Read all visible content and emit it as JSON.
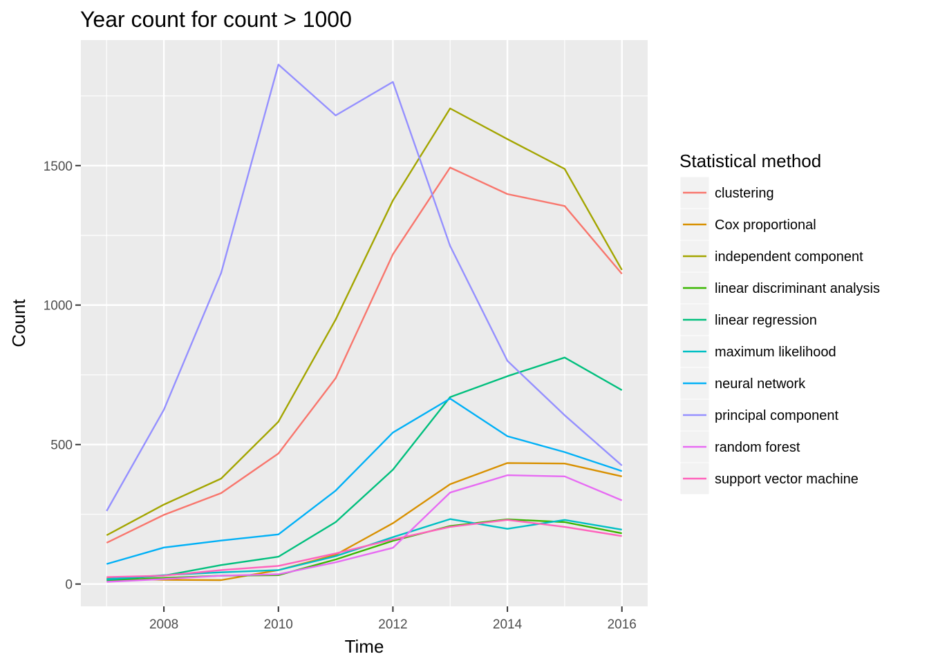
{
  "chart_data": {
    "type": "line",
    "title": "Year count for count > 1000",
    "xlabel": "Time",
    "ylabel": "Count",
    "x": [
      2007,
      2008,
      2009,
      2010,
      2011,
      2012,
      2013,
      2014,
      2015,
      2016
    ],
    "xticks": [
      2008,
      2010,
      2012,
      2014,
      2016
    ],
    "yticks": [
      0,
      500,
      1000,
      1500
    ],
    "xlim": [
      2006.55,
      2016.45
    ],
    "ylim": [
      -80,
      1950
    ],
    "grid": true,
    "legend_position": "right",
    "legend_title": "Statistical method",
    "series": [
      {
        "name": "clustering",
        "color": "#F8766D",
        "values": [
          148,
          248,
          326,
          468,
          738,
          1182,
          1493,
          1398,
          1355,
          1112
        ]
      },
      {
        "name": "Cox proportional",
        "color": "#D89000",
        "values": [
          20,
          15,
          14,
          50,
          105,
          218,
          358,
          434,
          432,
          386
        ]
      },
      {
        "name": "independent component",
        "color": "#A3A500",
        "values": [
          175,
          285,
          378,
          582,
          948,
          1375,
          1705,
          1595,
          1488,
          1126
        ]
      },
      {
        "name": "linear discriminant analysis",
        "color": "#39B600",
        "values": [
          12,
          22,
          30,
          32,
          88,
          155,
          208,
          232,
          222,
          182
        ]
      },
      {
        "name": "linear regression",
        "color": "#00BF7D",
        "values": [
          15,
          30,
          68,
          98,
          222,
          410,
          670,
          745,
          812,
          695
        ]
      },
      {
        "name": "maximum likelihood",
        "color": "#00BFC4",
        "values": [
          18,
          32,
          42,
          50,
          100,
          168,
          233,
          198,
          230,
          195
        ]
      },
      {
        "name": "neural network",
        "color": "#00B0F6",
        "values": [
          72,
          131,
          156,
          178,
          335,
          543,
          665,
          530,
          473,
          405
        ]
      },
      {
        "name": "principal component",
        "color": "#9590FF",
        "values": [
          262,
          625,
          1115,
          1862,
          1680,
          1800,
          1212,
          800,
          605,
          425
        ]
      },
      {
        "name": "random forest",
        "color": "#E76BF3",
        "values": [
          8,
          18,
          30,
          35,
          78,
          130,
          328,
          390,
          386,
          300
        ]
      },
      {
        "name": "support vector machine",
        "color": "#FF62BC",
        "values": [
          25,
          30,
          50,
          65,
          110,
          160,
          205,
          230,
          205,
          172
        ]
      }
    ]
  }
}
